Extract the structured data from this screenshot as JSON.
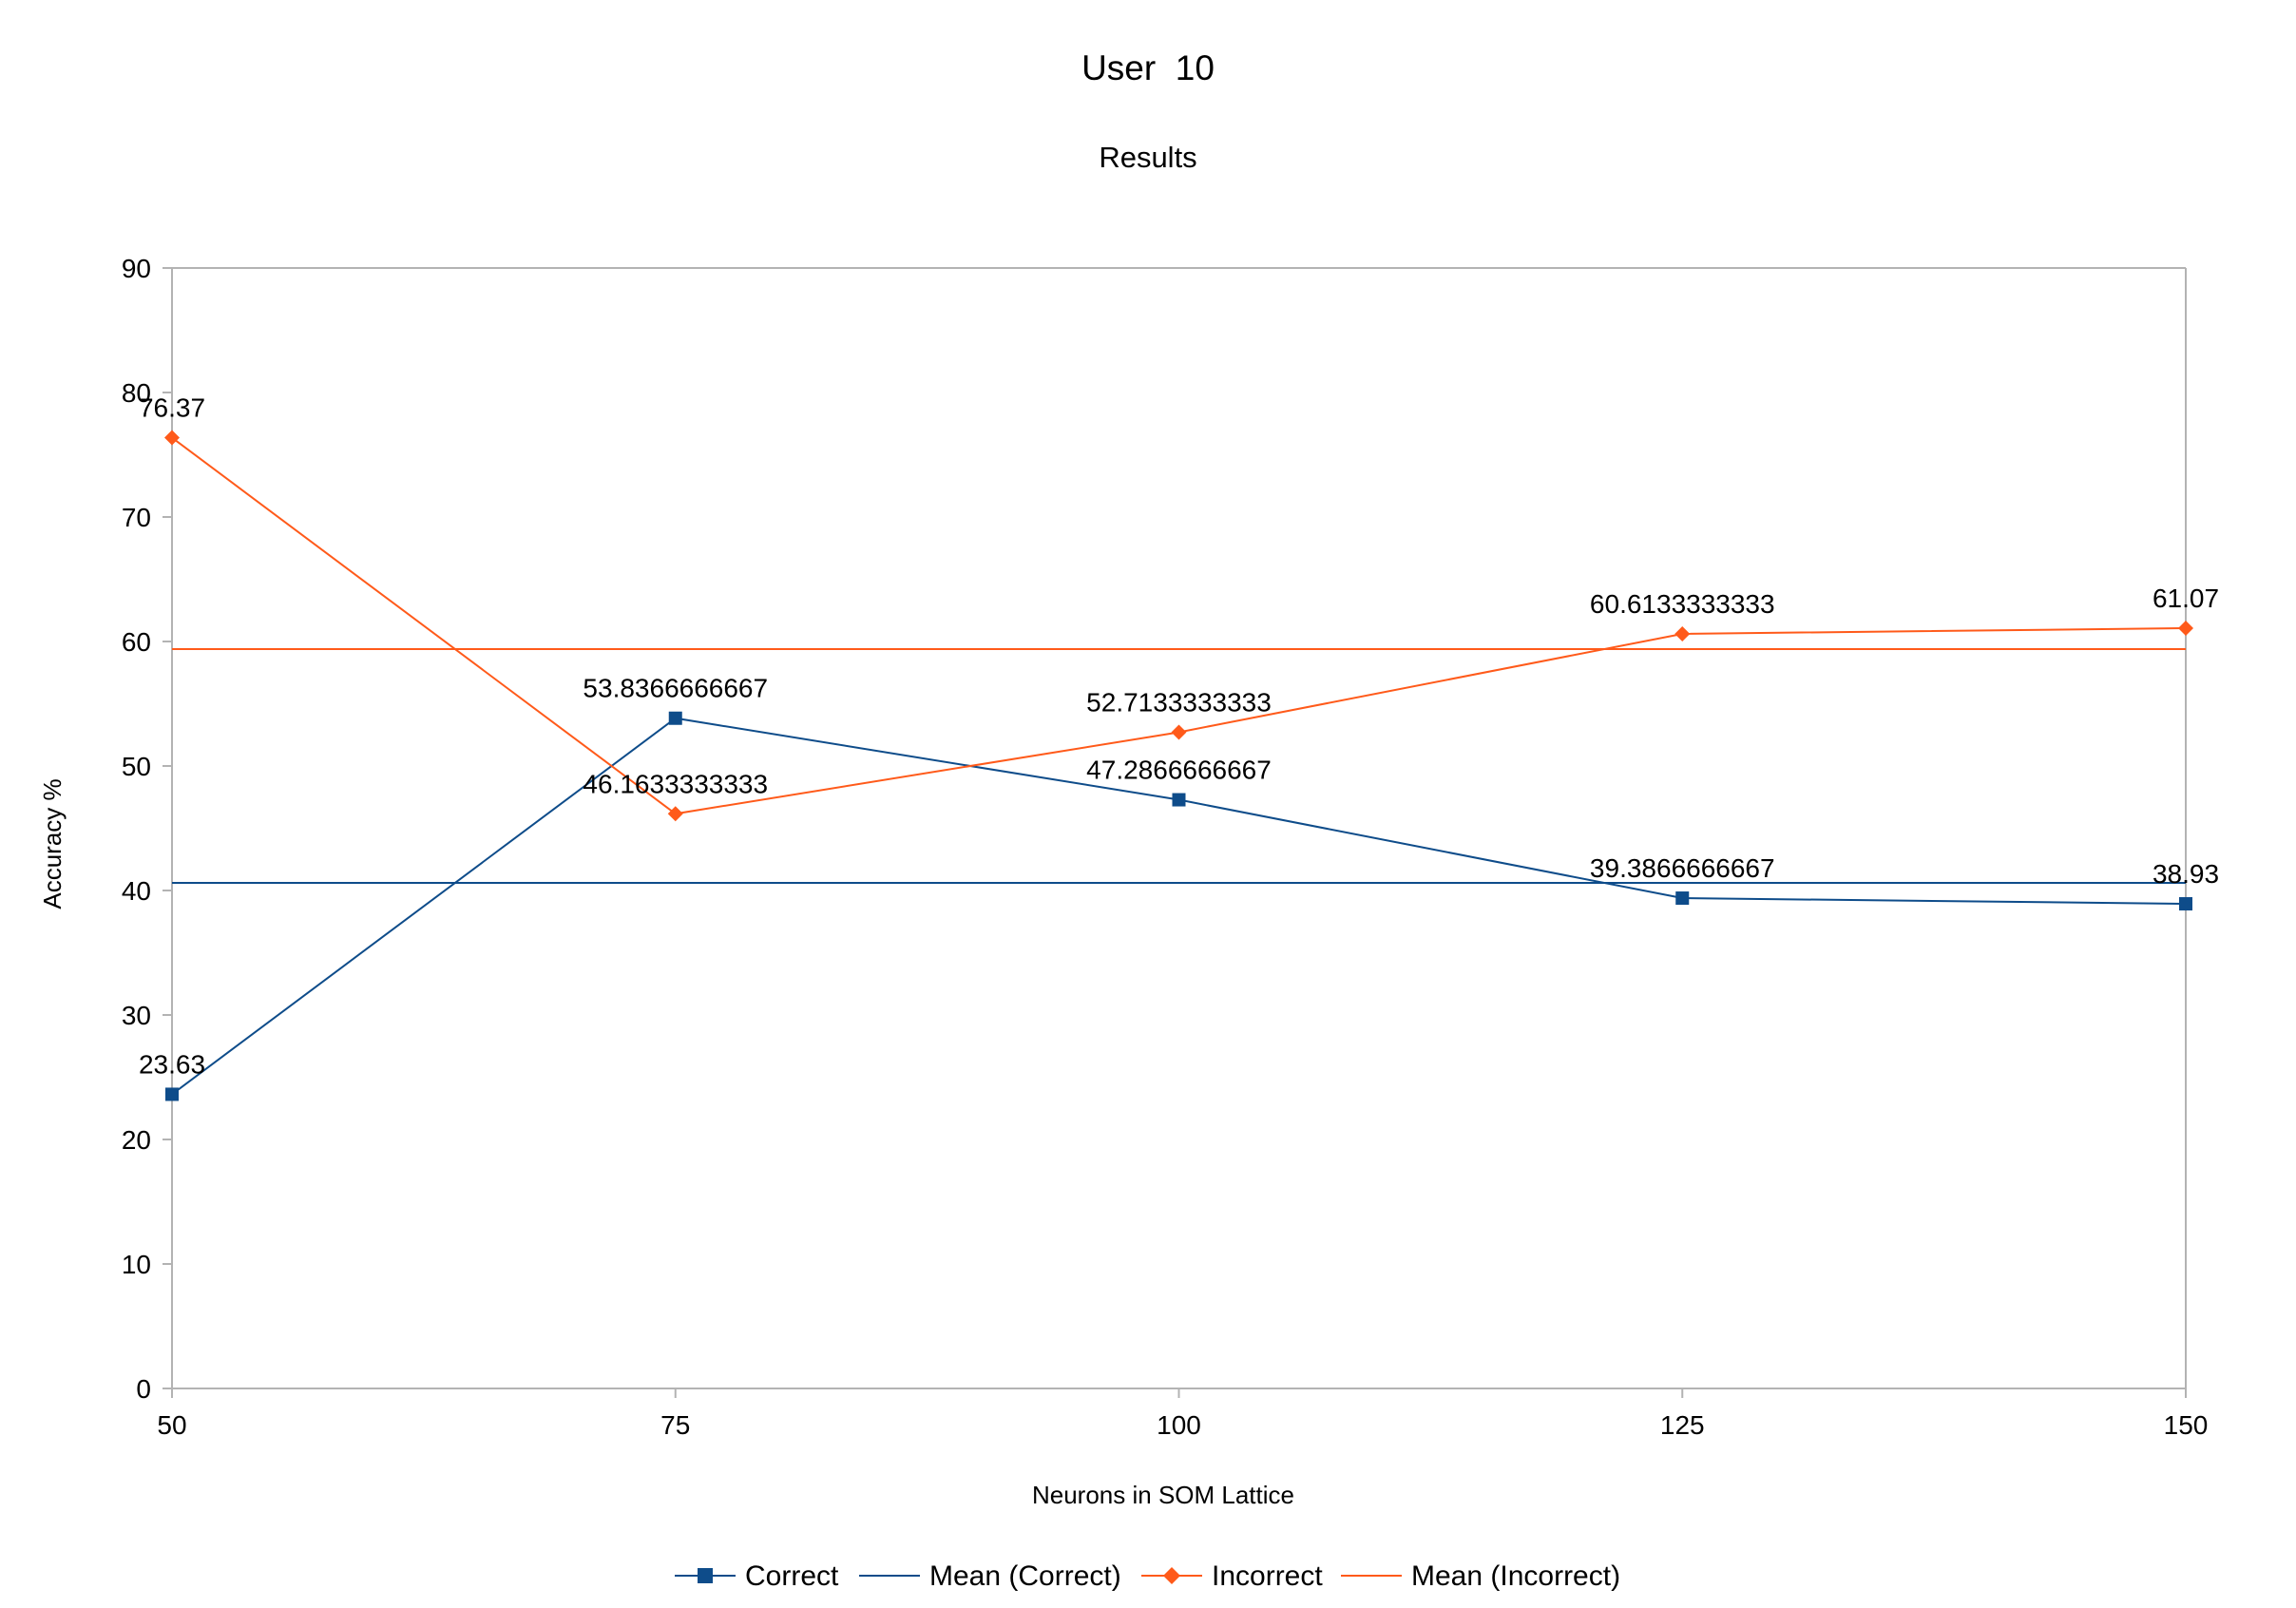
{
  "chart_data": {
    "type": "line",
    "title": "User  10",
    "subtitle": "Results",
    "xlabel": "Neurons in SOM Lattice",
    "ylabel": "Accuracy %",
    "x": [
      50,
      75,
      100,
      125,
      150
    ],
    "x_ticks": [
      "50",
      "75",
      "100",
      "125",
      "150"
    ],
    "y_ticks": [
      "0",
      "10",
      "20",
      "30",
      "40",
      "50",
      "60",
      "70",
      "80",
      "90"
    ],
    "xlim": [
      50,
      150
    ],
    "ylim": [
      0,
      90
    ],
    "grid": false,
    "legend_position": "bottom",
    "series": [
      {
        "name": "Correct",
        "color": "#0e4c8a",
        "marker": "square",
        "values": [
          23.63,
          53.8366666667,
          47.2866666667,
          39.3866666667,
          38.93
        ],
        "data_labels": [
          "23.63",
          "53.8366666667",
          "47.2866666667",
          "39.3866666667",
          "38.93"
        ]
      },
      {
        "name": "Mean (Correct)",
        "color": "#0e4c8a",
        "marker": "none",
        "values": [
          40.6146666667,
          40.6146666667,
          40.6146666667,
          40.6146666667,
          40.6146666667
        ]
      },
      {
        "name": "Incorrect",
        "color": "#ff5a1a",
        "marker": "diamond",
        "values": [
          76.37,
          46.1633333333,
          52.7133333333,
          60.6133333333,
          61.07
        ],
        "data_labels": [
          "76.37",
          "46.1633333333",
          "52.7133333333",
          "60.6133333333",
          "61.07"
        ]
      },
      {
        "name": "Mean (Incorrect)",
        "color": "#ff5a1a",
        "marker": "none",
        "values": [
          59.3853333333,
          59.3853333333,
          59.3853333333,
          59.3853333333,
          59.3853333333
        ]
      }
    ]
  }
}
